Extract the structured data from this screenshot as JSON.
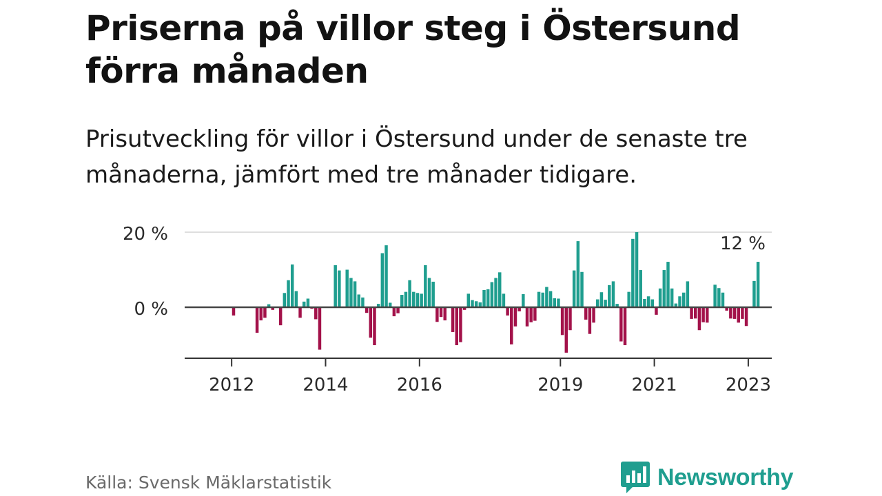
{
  "title": "Priserna på villor steg i Östersund förra månaden",
  "subtitle": "Prisutveckling för villor i Östersund under de senaste tre månaderna, jämfört med tre månader tidigare.",
  "source": "Källa: Svensk Mäklarstatistik",
  "brand": "Newsworthy",
  "colors": {
    "positive": "#1f9e8f",
    "negative": "#a3124a",
    "brand": "#1f9e8f"
  },
  "chart_data": {
    "type": "bar",
    "title": "Priserna på villor steg i Östersund förra månaden",
    "subtitle": "Prisutveckling för villor i Östersund under de senaste tre månaderna, jämfört med tre månader tidigare.",
    "x_start": "2011-01",
    "x_end": "2023-06",
    "x_ticks": [
      {
        "year": 2012,
        "label": "2012"
      },
      {
        "year": 2014,
        "label": "2014"
      },
      {
        "year": 2016,
        "label": "2016"
      },
      {
        "year": 2019,
        "label": "2019"
      },
      {
        "year": 2021,
        "label": "2021"
      },
      {
        "year": 2023,
        "label": "2023"
      }
    ],
    "y_ticks": [
      {
        "value": 20,
        "label": "20 %"
      },
      {
        "value": 0,
        "label": "0 %"
      }
    ],
    "ylim": [
      -14,
      20
    ],
    "grid": true,
    "series": [
      {
        "values": [
          {
            "month": "2012-01",
            "value": -2.2
          },
          {
            "month": "2012-07",
            "value": -6.8
          },
          {
            "month": "2012-08",
            "value": -3.5
          },
          {
            "month": "2012-09",
            "value": -2.8
          },
          {
            "month": "2012-10",
            "value": 0.8
          },
          {
            "month": "2012-11",
            "value": -0.7
          },
          {
            "month": "2013-01",
            "value": -4.8
          },
          {
            "month": "2013-02",
            "value": 3.8
          },
          {
            "month": "2013-03",
            "value": 7.2
          },
          {
            "month": "2013-04",
            "value": 11.4
          },
          {
            "month": "2013-05",
            "value": 4.3
          },
          {
            "month": "2013-06",
            "value": -2.8
          },
          {
            "month": "2013-07",
            "value": 1.5
          },
          {
            "month": "2013-08",
            "value": 2.3
          },
          {
            "month": "2013-09",
            "value": -0.4
          },
          {
            "month": "2013-10",
            "value": -3.2
          },
          {
            "month": "2013-11",
            "value": -11.3
          },
          {
            "month": "2014-03",
            "value": 11.2
          },
          {
            "month": "2014-04",
            "value": 9.8
          },
          {
            "month": "2014-06",
            "value": 10.0
          },
          {
            "month": "2014-07",
            "value": 7.8
          },
          {
            "month": "2014-08",
            "value": 6.9
          },
          {
            "month": "2014-09",
            "value": 3.4
          },
          {
            "month": "2014-10",
            "value": 2.6
          },
          {
            "month": "2014-11",
            "value": -1.5
          },
          {
            "month": "2014-12",
            "value": -8.1
          },
          {
            "month": "2015-01",
            "value": -10.1
          },
          {
            "month": "2015-02",
            "value": 0.9
          },
          {
            "month": "2015-03",
            "value": 14.4
          },
          {
            "month": "2015-04",
            "value": 16.5
          },
          {
            "month": "2015-05",
            "value": 1.2
          },
          {
            "month": "2015-06",
            "value": -2.4
          },
          {
            "month": "2015-07",
            "value": -1.6
          },
          {
            "month": "2015-08",
            "value": 3.3
          },
          {
            "month": "2015-09",
            "value": 4.1
          },
          {
            "month": "2015-10",
            "value": 7.2
          },
          {
            "month": "2015-11",
            "value": 4.1
          },
          {
            "month": "2015-12",
            "value": 3.8
          },
          {
            "month": "2016-01",
            "value": 3.6
          },
          {
            "month": "2016-02",
            "value": 11.2
          },
          {
            "month": "2016-03",
            "value": 7.8
          },
          {
            "month": "2016-04",
            "value": 6.8
          },
          {
            "month": "2016-05",
            "value": -3.9
          },
          {
            "month": "2016-06",
            "value": -2.6
          },
          {
            "month": "2016-07",
            "value": -3.5
          },
          {
            "month": "2016-09",
            "value": -6.6
          },
          {
            "month": "2016-10",
            "value": -10.1
          },
          {
            "month": "2016-11",
            "value": -9.3
          },
          {
            "month": "2016-12",
            "value": -0.7
          },
          {
            "month": "2017-01",
            "value": 3.6
          },
          {
            "month": "2017-02",
            "value": 1.9
          },
          {
            "month": "2017-03",
            "value": 1.6
          },
          {
            "month": "2017-04",
            "value": 1.3
          },
          {
            "month": "2017-05",
            "value": 4.6
          },
          {
            "month": "2017-06",
            "value": 4.8
          },
          {
            "month": "2017-07",
            "value": 6.7
          },
          {
            "month": "2017-08",
            "value": 7.8
          },
          {
            "month": "2017-09",
            "value": 9.3
          },
          {
            "month": "2017-10",
            "value": 3.6
          },
          {
            "month": "2017-11",
            "value": -2.2
          },
          {
            "month": "2017-12",
            "value": -9.9
          },
          {
            "month": "2018-01",
            "value": -5.1
          },
          {
            "month": "2018-02",
            "value": -1.1
          },
          {
            "month": "2018-03",
            "value": 3.5
          },
          {
            "month": "2018-04",
            "value": -5.1
          },
          {
            "month": "2018-05",
            "value": -4.0
          },
          {
            "month": "2018-06",
            "value": -3.6
          },
          {
            "month": "2018-07",
            "value": 4.1
          },
          {
            "month": "2018-08",
            "value": 3.9
          },
          {
            "month": "2018-09",
            "value": 5.4
          },
          {
            "month": "2018-10",
            "value": 4.3
          },
          {
            "month": "2018-11",
            "value": 2.4
          },
          {
            "month": "2018-12",
            "value": 2.3
          },
          {
            "month": "2019-01",
            "value": -7.4
          },
          {
            "month": "2019-02",
            "value": -12.1
          },
          {
            "month": "2019-03",
            "value": -6.1
          },
          {
            "month": "2019-04",
            "value": 9.8
          },
          {
            "month": "2019-05",
            "value": 17.6
          },
          {
            "month": "2019-06",
            "value": 9.4
          },
          {
            "month": "2019-07",
            "value": -3.3
          },
          {
            "month": "2019-08",
            "value": -7.1
          },
          {
            "month": "2019-09",
            "value": -4.1
          },
          {
            "month": "2019-10",
            "value": 2.1
          },
          {
            "month": "2019-11",
            "value": 4.0
          },
          {
            "month": "2019-12",
            "value": 2.0
          },
          {
            "month": "2020-01",
            "value": 5.9
          },
          {
            "month": "2020-02",
            "value": 6.9
          },
          {
            "month": "2020-03",
            "value": 0.9
          },
          {
            "month": "2020-04",
            "value": -9.1
          },
          {
            "month": "2020-05",
            "value": -10.1
          },
          {
            "month": "2020-06",
            "value": 4.1
          },
          {
            "month": "2020-07",
            "value": 18.2
          },
          {
            "month": "2020-08",
            "value": 20.0
          },
          {
            "month": "2020-09",
            "value": 9.9
          },
          {
            "month": "2020-10",
            "value": 2.2
          },
          {
            "month": "2020-11",
            "value": 2.9
          },
          {
            "month": "2020-12",
            "value": 2.1
          },
          {
            "month": "2021-01",
            "value": -2.0
          },
          {
            "month": "2021-02",
            "value": 5.0
          },
          {
            "month": "2021-03",
            "value": 9.9
          },
          {
            "month": "2021-04",
            "value": 12.1
          },
          {
            "month": "2021-05",
            "value": 5.0
          },
          {
            "month": "2021-06",
            "value": 1.0
          },
          {
            "month": "2021-07",
            "value": 2.9
          },
          {
            "month": "2021-08",
            "value": 3.9
          },
          {
            "month": "2021-09",
            "value": 6.9
          },
          {
            "month": "2021-10",
            "value": -3.1
          },
          {
            "month": "2021-11",
            "value": -3.0
          },
          {
            "month": "2021-12",
            "value": -6.1
          },
          {
            "month": "2022-01",
            "value": -4.0
          },
          {
            "month": "2022-02",
            "value": -4.1
          },
          {
            "month": "2022-04",
            "value": 6.0
          },
          {
            "month": "2022-05",
            "value": 5.1
          },
          {
            "month": "2022-06",
            "value": 3.9
          },
          {
            "month": "2022-07",
            "value": -0.9
          },
          {
            "month": "2022-08",
            "value": -3.0
          },
          {
            "month": "2022-09",
            "value": -3.1
          },
          {
            "month": "2022-10",
            "value": -4.1
          },
          {
            "month": "2022-11",
            "value": -3.1
          },
          {
            "month": "2022-12",
            "value": -5.0
          },
          {
            "month": "2023-02",
            "value": 7.0
          },
          {
            "month": "2023-03",
            "value": 12.1
          }
        ]
      }
    ],
    "annotations": [
      {
        "month": "2023-03",
        "label": "12 %"
      }
    ]
  }
}
